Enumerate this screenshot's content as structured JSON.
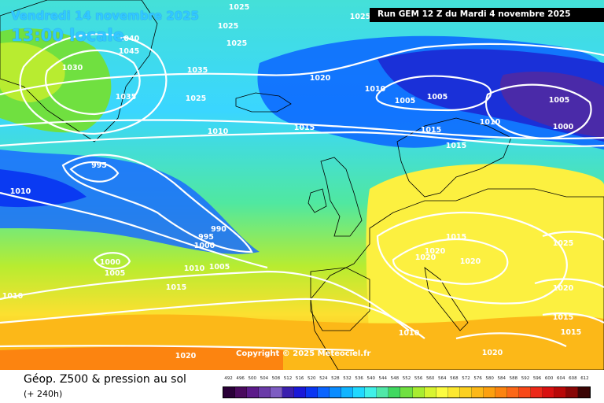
{
  "map": {
    "valid_date": "Vendredi 14 novembre 2025",
    "valid_time": "13:00 locale",
    "run_info": "Run GEM 12 Z du Mardi 4 novembre 2025",
    "copyright": "Copyright © 2025 Meteociel.fr",
    "pressure_labels": [
      "1025",
      "1025",
      "1025",
      "1025",
      "1040",
      "1045",
      "1030",
      "1035",
      "1035",
      "1025",
      "1020",
      "1010",
      "1005",
      "1005",
      "1005",
      "1000",
      "1010",
      "1010",
      "1015",
      "1015",
      "1015",
      "995",
      "1010",
      "990",
      "995",
      "1000",
      "1000",
      "1005",
      "1010",
      "1005",
      "1015",
      "1010",
      "1015",
      "1020",
      "1020",
      "1020",
      "1025",
      "1020",
      "1015",
      "1015",
      "1010",
      "1020",
      "1020"
    ]
  },
  "footer": {
    "title": "Géop. Z500 & pression au sol",
    "subtitle": "(+ 240h)"
  },
  "legend": {
    "values": [
      "492",
      "496",
      "500",
      "504",
      "508",
      "512",
      "516",
      "520",
      "524",
      "528",
      "532",
      "536",
      "540",
      "544",
      "548",
      "552",
      "556",
      "560",
      "564",
      "568",
      "572",
      "576",
      "580",
      "584",
      "588",
      "592",
      "596",
      "600",
      "604",
      "608",
      "612"
    ],
    "colors": [
      "#2a0038",
      "#4a0a5e",
      "#5c1a8a",
      "#6a3aa8",
      "#7d5cc2",
      "#3a1fae",
      "#1a18d8",
      "#0a36f2",
      "#0a64ff",
      "#0a8cff",
      "#10b4ff",
      "#20d8ff",
      "#40f0e8",
      "#50e8a8",
      "#40d860",
      "#70e040",
      "#a8ec30",
      "#d8f430",
      "#fcfc40",
      "#fce830",
      "#fcd020",
      "#fcb818",
      "#fca010",
      "#fc8410",
      "#fc6818",
      "#f84818",
      "#ec2818",
      "#d81010",
      "#b80808",
      "#880606",
      "#3a0404"
    ]
  }
}
